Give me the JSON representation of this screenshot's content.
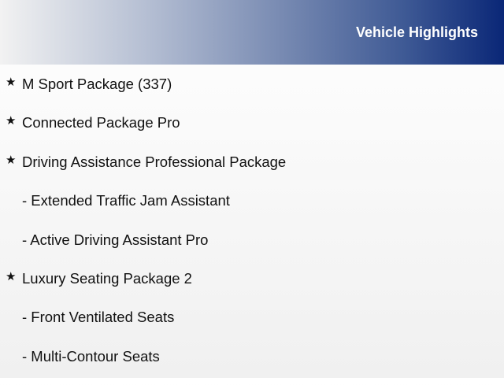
{
  "header": {
    "title": "Vehicle Highlights",
    "gradient_start": "#f2f2f2",
    "gradient_end": "#0a2777"
  },
  "items": [
    {
      "bullet": "★",
      "text": "M Sport Package (337)"
    },
    {
      "bullet": "★",
      "text": "Connected Package Pro"
    },
    {
      "bullet": "★",
      "text": "Driving Assistance Professional Package"
    },
    {
      "bullet": "",
      "text": "- Extended Traffic Jam Assistant"
    },
    {
      "bullet": "",
      "text": "- Active Driving Assistant Pro"
    },
    {
      "bullet": "★",
      "text": "Luxury Seating Package 2"
    },
    {
      "bullet": "",
      "text": "- Front Ventilated Seats"
    },
    {
      "bullet": "",
      "text": "- Multi-Contour Seats"
    }
  ]
}
